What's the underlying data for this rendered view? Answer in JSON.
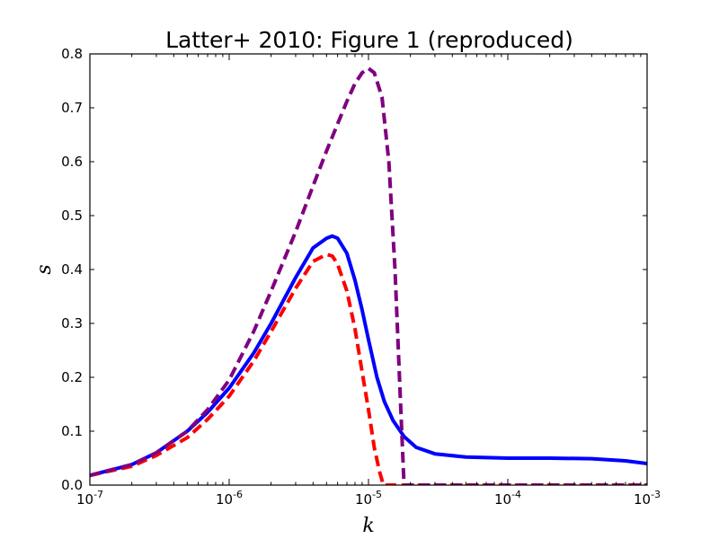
{
  "chart_data": {
    "type": "line",
    "title": "Latter+ 2010: Figure 1 (reproduced)",
    "xlabel": "k",
    "ylabel": "s",
    "xscale": "log",
    "xlim": [
      1e-07,
      0.001
    ],
    "ylim": [
      0,
      0.8
    ],
    "grid": false,
    "legend": "none",
    "x_ticks": [
      {
        "base": "10",
        "exp": "-7",
        "value": 1e-07
      },
      {
        "base": "10",
        "exp": "-6",
        "value": 1e-06
      },
      {
        "base": "10",
        "exp": "-5",
        "value": 1e-05
      },
      {
        "base": "10",
        "exp": "-4",
        "value": 0.0001
      },
      {
        "base": "10",
        "exp": "-3",
        "value": 0.001
      }
    ],
    "y_ticks": [
      {
        "label": "0.0",
        "value": 0.0
      },
      {
        "label": "0.1",
        "value": 0.1
      },
      {
        "label": "0.2",
        "value": 0.2
      },
      {
        "label": "0.3",
        "value": 0.3
      },
      {
        "label": "0.4",
        "value": 0.4
      },
      {
        "label": "0.5",
        "value": 0.5
      },
      {
        "label": "0.6",
        "value": 0.6
      },
      {
        "label": "0.7",
        "value": 0.7
      },
      {
        "label": "0.8",
        "value": 0.8
      }
    ],
    "series": [
      {
        "color": "#0000ff",
        "style": "solid",
        "x": [
          1e-07,
          2e-07,
          3e-07,
          5e-07,
          7e-07,
          1e-06,
          1.5e-06,
          2e-06,
          3e-06,
          4e-06,
          5e-06,
          5.5e-06,
          6e-06,
          7e-06,
          8e-06,
          9e-06,
          1e-05,
          1.15e-05,
          1.3e-05,
          1.5e-05,
          1.8e-05,
          2.2e-05,
          3e-05,
          5e-05,
          0.0001,
          0.0002,
          0.0004,
          0.0007,
          0.001
        ],
        "y": [
          0.018,
          0.038,
          0.06,
          0.1,
          0.135,
          0.18,
          0.245,
          0.3,
          0.385,
          0.44,
          0.458,
          0.462,
          0.458,
          0.43,
          0.38,
          0.325,
          0.27,
          0.2,
          0.155,
          0.12,
          0.09,
          0.07,
          0.058,
          0.052,
          0.05,
          0.05,
          0.049,
          0.045,
          0.04
        ]
      },
      {
        "color": "#ff0000",
        "style": "dashed",
        "x": [
          1e-07,
          2e-07,
          3e-07,
          5e-07,
          7e-07,
          1e-06,
          1.5e-06,
          2e-06,
          3e-06,
          4e-06,
          5e-06,
          5.5e-06,
          6e-06,
          7e-06,
          8e-06,
          9e-06,
          1e-05,
          1.1e-05,
          1.2e-05,
          1.28e-05,
          1.35e-05,
          2e-05,
          0.0001,
          0.001
        ],
        "y": [
          0.018,
          0.035,
          0.055,
          0.088,
          0.122,
          0.165,
          0.23,
          0.285,
          0.365,
          0.415,
          0.428,
          0.425,
          0.41,
          0.36,
          0.29,
          0.21,
          0.14,
          0.07,
          0.025,
          0.0,
          0.0,
          0.0,
          0.0,
          0.0
        ]
      },
      {
        "color": "#800080",
        "style": "dashed",
        "x": [
          1e-07,
          2e-07,
          3e-07,
          5e-07,
          7e-07,
          1e-06,
          1.5e-06,
          2e-06,
          3e-06,
          4e-06,
          5e-06,
          6e-06,
          7e-06,
          8e-06,
          9e-06,
          1e-05,
          1.1e-05,
          1.25e-05,
          1.4e-05,
          1.55e-05,
          1.7e-05,
          1.8e-05,
          1.9e-05,
          3e-05,
          0.0001,
          0.001
        ],
        "y": [
          0.018,
          0.038,
          0.06,
          0.1,
          0.14,
          0.195,
          0.285,
          0.36,
          0.47,
          0.555,
          0.62,
          0.67,
          0.712,
          0.745,
          0.765,
          0.773,
          0.765,
          0.72,
          0.6,
          0.4,
          0.15,
          0.0,
          0.0,
          0.0,
          0.0,
          0.0
        ]
      }
    ]
  }
}
